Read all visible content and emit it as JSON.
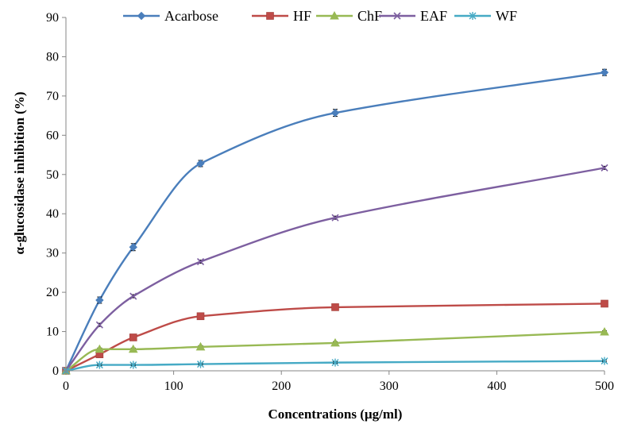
{
  "chart_data": {
    "type": "line",
    "title": "",
    "xlabel": "Concentrations (µg/ml)",
    "ylabel": "α-glucosidase inhibition (%)",
    "xlim": [
      0,
      500
    ],
    "ylim": [
      0,
      90
    ],
    "x_ticks": [
      "0",
      "100",
      "200",
      "300",
      "400",
      "500"
    ],
    "y_ticks": [
      "0",
      "10",
      "20",
      "30",
      "40",
      "50",
      "60",
      "70",
      "80",
      "90"
    ],
    "grid": false,
    "legend_position": "top",
    "x": [
      0,
      31.25,
      62.5,
      125,
      250,
      500
    ],
    "series": [
      {
        "name": "Acarbose",
        "color": "#4a7ebb",
        "marker": "diamond",
        "values": [
          0,
          18,
          31.5,
          52.8,
          65.7,
          76
        ],
        "errors": [
          0,
          0.8,
          0.9,
          0.8,
          0.9,
          0.8
        ]
      },
      {
        "name": "HF",
        "color": "#be4b48",
        "marker": "square",
        "values": [
          0,
          4.2,
          8.5,
          13.9,
          16.2,
          17.1
        ],
        "errors": [
          0,
          0.5,
          0.5,
          0.5,
          0.5,
          0.5
        ]
      },
      {
        "name": "ChF",
        "color": "#98b954",
        "marker": "triangle",
        "values": [
          0,
          5.5,
          5.5,
          6.1,
          7.1,
          9.9
        ],
        "errors": [
          0,
          0.3,
          0.3,
          0.3,
          0.3,
          0.3
        ]
      },
      {
        "name": "EAF",
        "color": "#7d5fa0",
        "marker": "x",
        "values": [
          0,
          11.7,
          19,
          27.8,
          39,
          51.7
        ],
        "errors": [
          0,
          0.4,
          0.4,
          0.4,
          0.4,
          0.4
        ]
      },
      {
        "name": "WF",
        "color": "#46aac5",
        "marker": "star",
        "values": [
          0,
          1.5,
          1.5,
          1.7,
          2.1,
          2.5
        ],
        "errors": [
          0,
          0.2,
          0.2,
          0.2,
          0.2,
          0.2
        ]
      }
    ]
  }
}
